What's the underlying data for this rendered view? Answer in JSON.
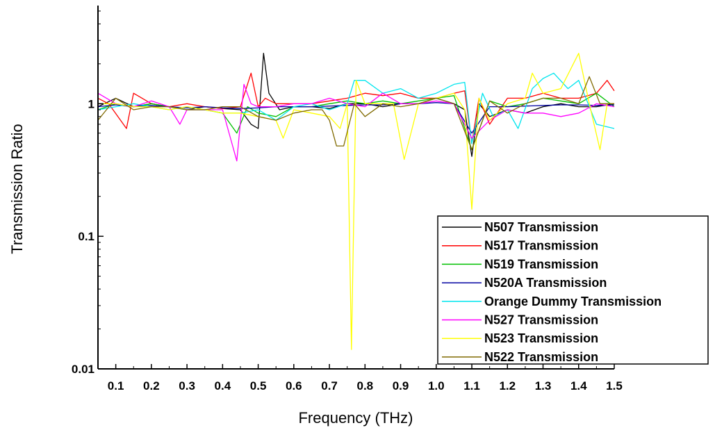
{
  "chart_data": {
    "type": "line",
    "title": "",
    "xlabel": "Frequency (THz)",
    "ylabel": "Transmission Ratio",
    "xlim": [
      0.05,
      1.5
    ],
    "ylim": [
      0.01,
      5.5
    ],
    "yscale": "log",
    "grid": false,
    "legend_position": "bottom-right",
    "x_ticks": [
      0.1,
      0.2,
      0.3,
      0.4,
      0.5,
      0.6,
      0.7,
      0.8,
      0.9,
      1.0,
      1.1,
      1.2,
      1.3,
      1.4,
      1.5
    ],
    "x_tick_labels": [
      "0.1",
      "0.2",
      "0.3",
      "0.4",
      "0.5",
      "0.6",
      "0.7",
      "0.8",
      "0.9",
      "1.0",
      "1.1",
      "1.2",
      "1.3",
      "1.4",
      "1.5"
    ],
    "y_ticks": [
      0.01,
      0.1,
      1
    ],
    "y_tick_labels": [
      "0.01",
      "0.1",
      "1"
    ],
    "series": [
      {
        "name": "N507 Transmission",
        "color": "#000000",
        "x": [
          0.05,
          0.1,
          0.15,
          0.2,
          0.25,
          0.3,
          0.35,
          0.4,
          0.45,
          0.48,
          0.5,
          0.515,
          0.53,
          0.56,
          0.6,
          0.65,
          0.7,
          0.75,
          0.8,
          0.85,
          0.9,
          0.95,
          1.0,
          1.05,
          1.08,
          1.1,
          1.12,
          1.15,
          1.2,
          1.25,
          1.3,
          1.35,
          1.4,
          1.45,
          1.5
        ],
        "y": [
          0.95,
          1.1,
          0.95,
          1.0,
          0.95,
          0.9,
          0.95,
          0.92,
          0.9,
          0.7,
          0.65,
          2.4,
          1.2,
          0.9,
          0.95,
          0.95,
          0.92,
          1.0,
          1.0,
          0.95,
          1.0,
          1.0,
          1.1,
          1.0,
          0.9,
          0.4,
          1.0,
          0.8,
          0.9,
          0.85,
          0.95,
          1.0,
          0.95,
          0.95,
          1.0
        ]
      },
      {
        "name": "N517 Transmission",
        "color": "#ff0000",
        "x": [
          0.05,
          0.08,
          0.13,
          0.15,
          0.2,
          0.25,
          0.3,
          0.35,
          0.4,
          0.45,
          0.48,
          0.5,
          0.52,
          0.55,
          0.6,
          0.65,
          0.7,
          0.75,
          0.8,
          0.85,
          0.9,
          0.95,
          1.0,
          1.05,
          1.08,
          1.1,
          1.12,
          1.15,
          1.2,
          1.25,
          1.3,
          1.35,
          1.4,
          1.45,
          1.48,
          1.5
        ],
        "y": [
          1.1,
          1.0,
          0.65,
          1.2,
          1.0,
          0.95,
          1.0,
          0.95,
          0.92,
          0.95,
          1.7,
          0.95,
          1.1,
          1.0,
          1.0,
          1.0,
          1.05,
          1.1,
          1.2,
          1.15,
          1.2,
          1.1,
          1.1,
          1.2,
          1.25,
          0.5,
          1.1,
          0.7,
          1.1,
          1.1,
          1.2,
          1.1,
          1.1,
          1.2,
          1.5,
          1.25
        ]
      },
      {
        "name": "N519 Transmission",
        "color": "#00c000",
        "x": [
          0.05,
          0.1,
          0.15,
          0.2,
          0.25,
          0.3,
          0.35,
          0.4,
          0.44,
          0.47,
          0.5,
          0.55,
          0.6,
          0.65,
          0.7,
          0.75,
          0.8,
          0.85,
          0.9,
          0.95,
          1.0,
          1.05,
          1.1,
          1.15,
          1.2,
          1.25,
          1.3,
          1.35,
          1.4,
          1.45,
          1.5
        ],
        "y": [
          0.9,
          1.0,
          0.95,
          1.0,
          0.95,
          0.9,
          0.9,
          0.85,
          0.6,
          0.95,
          0.85,
          0.8,
          0.95,
          0.95,
          1.0,
          1.05,
          1.0,
          1.05,
          1.0,
          1.05,
          1.1,
          1.15,
          0.45,
          1.05,
          0.95,
          1.0,
          1.1,
          1.05,
          1.0,
          1.2,
          0.95
        ]
      },
      {
        "name": "N520A Transmission",
        "color": "#0000a0",
        "x": [
          0.05,
          0.1,
          0.15,
          0.2,
          0.25,
          0.3,
          0.35,
          0.4,
          0.45,
          0.5,
          0.55,
          0.6,
          0.65,
          0.7,
          0.75,
          0.8,
          0.85,
          0.9,
          0.95,
          1.0,
          1.05,
          1.1,
          1.15,
          1.2,
          1.25,
          1.3,
          1.35,
          1.4,
          1.45,
          1.5
        ],
        "y": [
          0.95,
          0.98,
          0.95,
          0.97,
          0.95,
          0.93,
          0.95,
          0.93,
          0.92,
          0.93,
          0.95,
          0.95,
          0.95,
          0.96,
          0.97,
          0.98,
          0.98,
          1.0,
          1.0,
          1.02,
          1.0,
          0.6,
          0.95,
          0.95,
          0.96,
          0.97,
          0.98,
          0.98,
          0.97,
          0.98
        ]
      },
      {
        "name": "Orange Dummy Transmission",
        "color": "#00e5ee",
        "x": [
          0.05,
          0.1,
          0.15,
          0.2,
          0.25,
          0.3,
          0.35,
          0.4,
          0.45,
          0.5,
          0.55,
          0.6,
          0.65,
          0.7,
          0.75,
          0.77,
          0.8,
          0.85,
          0.9,
          0.95,
          1.0,
          1.05,
          1.08,
          1.1,
          1.13,
          1.16,
          1.2,
          1.23,
          1.27,
          1.3,
          1.33,
          1.37,
          1.4,
          1.45,
          1.5
        ],
        "y": [
          0.9,
          0.95,
          1.0,
          0.95,
          0.9,
          0.95,
          0.9,
          0.85,
          0.85,
          0.9,
          0.75,
          0.95,
          1.0,
          0.9,
          1.0,
          1.5,
          1.5,
          1.2,
          1.3,
          1.1,
          1.2,
          1.4,
          1.45,
          0.5,
          1.2,
          0.8,
          0.9,
          0.65,
          1.3,
          1.55,
          1.7,
          1.3,
          1.5,
          0.7,
          0.65
        ]
      },
      {
        "name": "N527 Transmission",
        "color": "#ff00ff",
        "x": [
          0.05,
          0.1,
          0.15,
          0.2,
          0.25,
          0.28,
          0.3,
          0.35,
          0.4,
          0.44,
          0.46,
          0.48,
          0.5,
          0.55,
          0.6,
          0.65,
          0.7,
          0.75,
          0.8,
          0.85,
          0.9,
          0.95,
          1.0,
          1.05,
          1.1,
          1.15,
          1.2,
          1.25,
          1.3,
          1.35,
          1.4,
          1.45,
          1.5
        ],
        "y": [
          1.2,
          1.0,
          0.95,
          1.05,
          0.95,
          0.7,
          0.9,
          0.9,
          0.9,
          0.37,
          1.4,
          1.0,
          0.95,
          0.95,
          1.0,
          1.0,
          1.1,
          1.0,
          0.95,
          1.2,
          1.0,
          1.0,
          1.05,
          1.0,
          0.55,
          0.75,
          0.9,
          0.85,
          0.85,
          0.8,
          0.85,
          1.0,
          0.95
        ]
      },
      {
        "name": "N523 Transmission",
        "color": "#ffff00",
        "x": [
          0.05,
          0.1,
          0.15,
          0.2,
          0.25,
          0.3,
          0.35,
          0.4,
          0.45,
          0.5,
          0.55,
          0.57,
          0.6,
          0.65,
          0.7,
          0.73,
          0.75,
          0.762,
          0.775,
          0.8,
          0.85,
          0.88,
          0.91,
          0.95,
          1.0,
          1.05,
          1.08,
          1.1,
          1.12,
          1.15,
          1.2,
          1.25,
          1.27,
          1.3,
          1.35,
          1.4,
          1.43,
          1.46,
          1.48,
          1.5
        ],
        "y": [
          1.0,
          1.0,
          0.95,
          0.95,
          0.9,
          0.95,
          0.9,
          0.85,
          0.85,
          0.8,
          0.75,
          0.55,
          0.9,
          0.85,
          0.8,
          0.65,
          1.0,
          0.014,
          1.5,
          1.0,
          1.0,
          1.0,
          0.38,
          1.0,
          1.1,
          1.2,
          0.9,
          0.16,
          1.1,
          0.75,
          1.0,
          1.1,
          1.7,
          1.2,
          1.3,
          2.4,
          1.0,
          0.45,
          1.0,
          1.0
        ]
      },
      {
        "name": "N522 Transmission",
        "color": "#806a00",
        "x": [
          0.05,
          0.1,
          0.15,
          0.2,
          0.25,
          0.3,
          0.35,
          0.4,
          0.45,
          0.5,
          0.55,
          0.6,
          0.65,
          0.68,
          0.7,
          0.72,
          0.74,
          0.77,
          0.8,
          0.85,
          0.9,
          0.95,
          1.0,
          1.05,
          1.1,
          1.15,
          1.2,
          1.25,
          1.3,
          1.35,
          1.4,
          1.43,
          1.46,
          1.5
        ],
        "y": [
          0.75,
          1.1,
          0.9,
          0.95,
          0.95,
          0.9,
          0.9,
          0.95,
          0.95,
          0.8,
          0.75,
          0.85,
          0.9,
          0.9,
          0.75,
          0.48,
          0.48,
          1.0,
          0.8,
          1.0,
          0.95,
          1.0,
          1.1,
          1.0,
          0.45,
          1.05,
          0.85,
          1.0,
          1.1,
          1.1,
          1.0,
          1.6,
          1.0,
          1.0
        ]
      }
    ]
  }
}
